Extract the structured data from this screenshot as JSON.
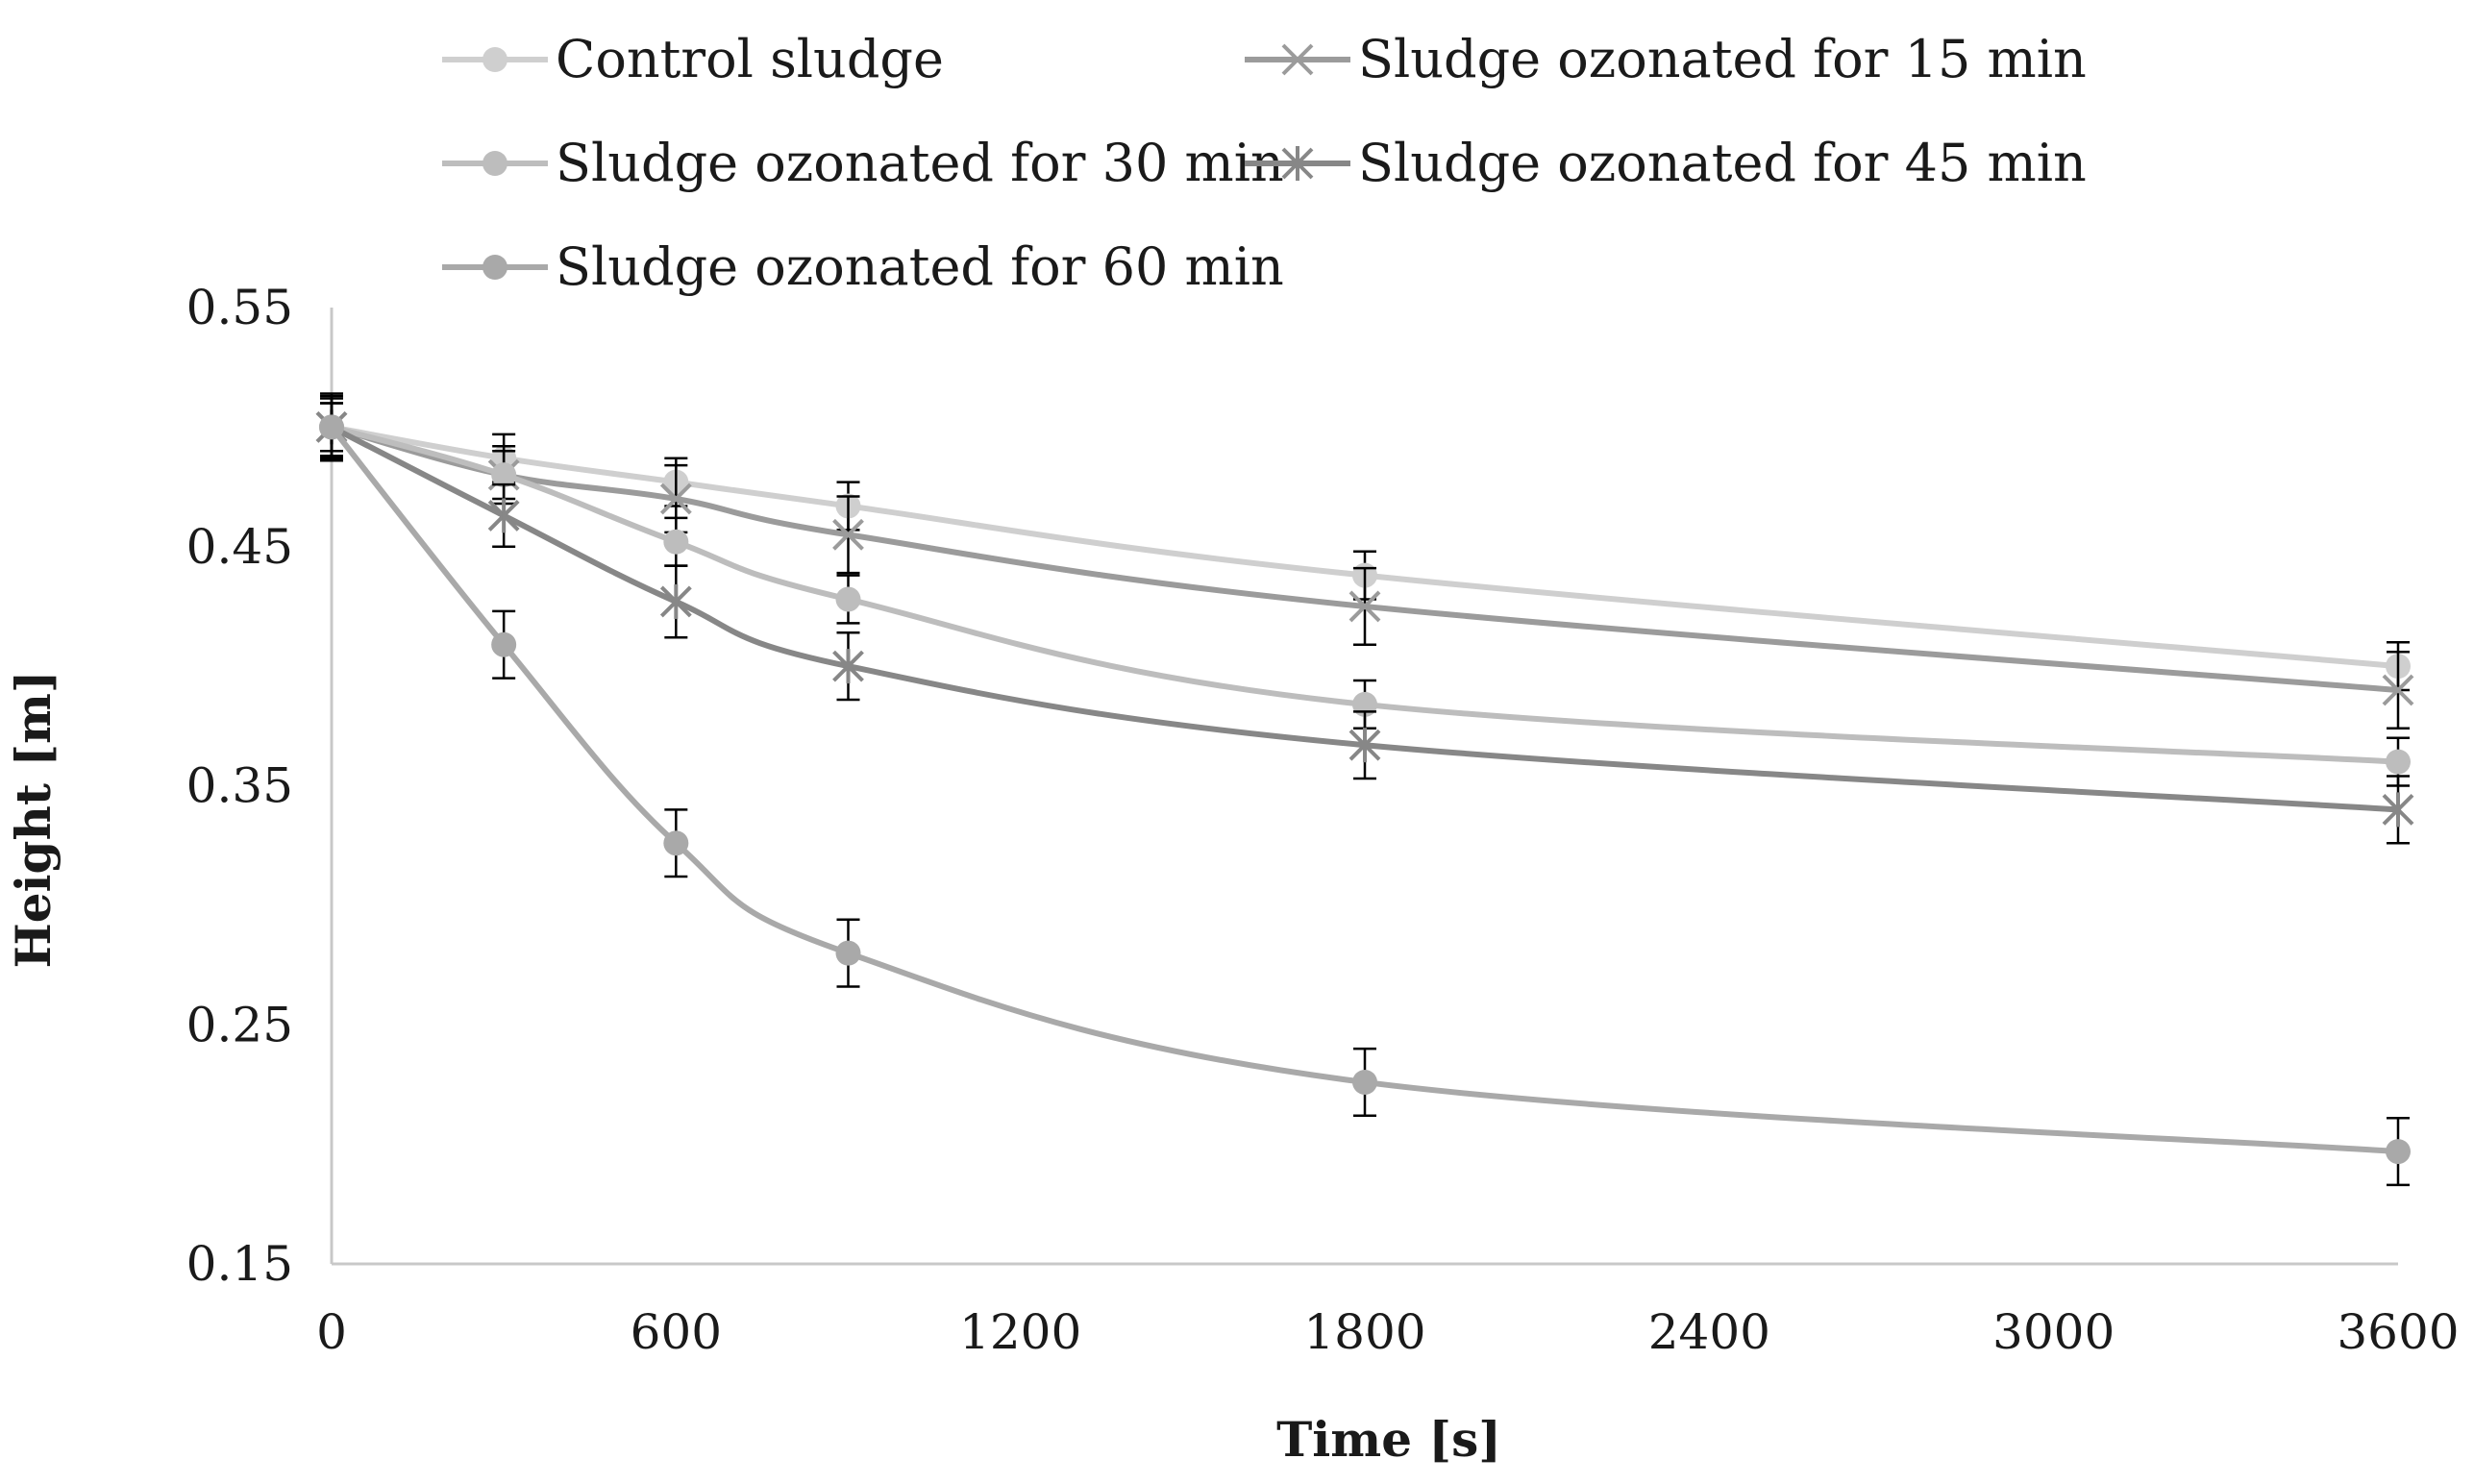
{
  "chart_data": {
    "type": "line",
    "title": "",
    "xlabel": "Time [s]",
    "ylabel": "Height [m]",
    "xlim": [
      0,
      3600
    ],
    "ylim": [
      0.15,
      0.55
    ],
    "xticks": [
      0,
      600,
      1200,
      1800,
      2400,
      3000,
      3600
    ],
    "yticks": [
      0.15,
      0.25,
      0.35,
      0.45,
      0.55
    ],
    "xtick_labels": [
      "0",
      "600",
      "1200",
      "1800",
      "2400",
      "3000",
      "3600"
    ],
    "ytick_labels": [
      "0.15",
      "0.25",
      "0.35",
      "0.45",
      "0.55"
    ],
    "grid": false,
    "legend_position": "top",
    "x": [
      0,
      300,
      600,
      900,
      1800,
      3600
    ],
    "series": [
      {
        "name": "Control sludge",
        "marker": "circle",
        "color": "#cfcfcf",
        "values": [
          0.5,
          0.487,
          0.477,
          0.467,
          0.438,
          0.4
        ],
        "errors": [
          0.01,
          0.01,
          0.01,
          0.01,
          0.01,
          0.01
        ]
      },
      {
        "name": "Sludge ozonated for 15 min",
        "marker": "x",
        "color": "#9b9b9b",
        "values": [
          0.5,
          0.48,
          0.47,
          0.455,
          0.425,
          0.39
        ],
        "errors": [
          0.012,
          0.012,
          0.014,
          0.016,
          0.016,
          0.016
        ]
      },
      {
        "name": "Sludge ozonated for 30 min",
        "marker": "circle",
        "color": "#bdbdbd",
        "values": [
          0.5,
          0.48,
          0.452,
          0.428,
          0.384,
          0.36
        ],
        "errors": [
          0.01,
          0.01,
          0.01,
          0.01,
          0.01,
          0.01
        ]
      },
      {
        "name": "Sludge ozonated for 45 min",
        "marker": "asterisk",
        "color": "#878787",
        "values": [
          0.5,
          0.463,
          0.427,
          0.4,
          0.367,
          0.34
        ],
        "errors": [
          0.013,
          0.013,
          0.015,
          0.014,
          0.014,
          0.014
        ]
      },
      {
        "name": "Sludge ozonated for 60 min",
        "marker": "circle",
        "color": "#a9a9a9",
        "values": [
          0.5,
          0.409,
          0.326,
          0.28,
          0.226,
          0.197
        ],
        "errors": [
          0.014,
          0.014,
          0.014,
          0.014,
          0.014,
          0.014
        ]
      }
    ]
  }
}
